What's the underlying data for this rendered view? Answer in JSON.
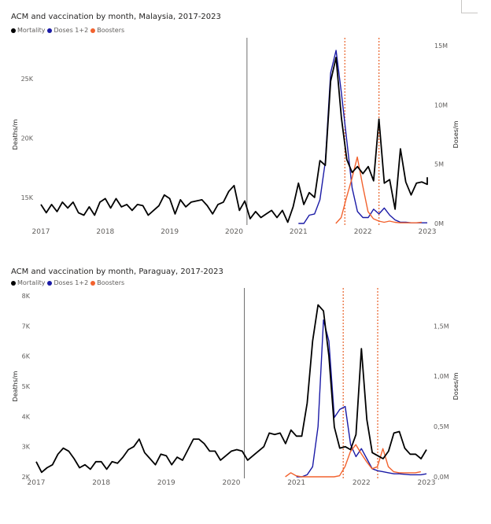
{
  "colors": {
    "mortality": "#000000",
    "doses": "#1a1aa6",
    "boosters": "#f2622e",
    "axis": "#605e5c",
    "vline": "#6e6e6e",
    "dashed": "#e8622a"
  },
  "legend": {
    "mortality": "Mortality",
    "doses": "Doses 1+2",
    "boosters": "Boosters"
  },
  "chart_data": [
    {
      "type": "line",
      "title": "ACM and vaccination by month, Malaysia, 2017-2023",
      "ylabel_left": "Deaths/m",
      "ylabel_right": "Doses/m",
      "x_ticks": [
        "2017",
        "2018",
        "2019",
        "2020",
        "2021",
        "2022",
        "2023"
      ],
      "y_left_ticks": [
        "15K",
        "20K",
        "25K"
      ],
      "y_left_tick_values": [
        15000,
        20000,
        25000
      ],
      "y_right_ticks": [
        "0M",
        "5M",
        "10M",
        "15M"
      ],
      "y_right_tick_values": [
        0,
        5000000,
        10000000,
        15000000
      ],
      "ylim_left": [
        12800,
        27800
      ],
      "ylim_right": [
        0,
        15000000
      ],
      "x_range": [
        2017,
        2023
      ],
      "grid": false,
      "legend_position": "top-left",
      "vertical_lines": [
        {
          "x": 2020.2,
          "style": "solid"
        },
        {
          "x": 2021.72,
          "style": "dashed"
        },
        {
          "x": 2022.25,
          "style": "dashed"
        }
      ],
      "series": [
        {
          "name": "Mortality",
          "axis": "left",
          "color": "#000000",
          "x_start": 2017,
          "step": 0.08333,
          "values": [
            14400,
            13700,
            14400,
            13800,
            14600,
            14100,
            14600,
            13700,
            13500,
            14200,
            13500,
            14600,
            14900,
            14100,
            14900,
            14200,
            14400,
            13900,
            14400,
            14300,
            13500,
            13900,
            14300,
            15200,
            14900,
            13600,
            14800,
            14200,
            14600,
            14700,
            14800,
            14300,
            13600,
            14400,
            14600,
            15500,
            16000,
            13900,
            14700,
            13200,
            13800,
            13300,
            13600,
            13900,
            13300,
            13900,
            12900,
            14200,
            16200,
            14400,
            15400,
            15000,
            18100,
            17700,
            24800,
            26800,
            21700,
            18200,
            17100,
            17600,
            17000,
            17600,
            16400,
            21600,
            16200,
            16500,
            14000,
            19100,
            16300,
            15200,
            16200,
            16300,
            16100,
            16700
          ]
        },
        {
          "name": "Doses 1+2",
          "axis": "right",
          "color": "#1a1aa6",
          "x_start": 2021.0,
          "step": 0.08333,
          "values": [
            0,
            0,
            700000,
            800000,
            2000000,
            5200000,
            12700000,
            14600000,
            11000000,
            7000000,
            3000000,
            1000000,
            500000,
            500000,
            1200000,
            800000,
            1300000,
            700000,
            300000,
            100000,
            100000,
            50000,
            50000,
            50000,
            50000
          ]
        },
        {
          "name": "Boosters",
          "axis": "right",
          "color": "#f2622e",
          "x_start": 2021.58,
          "step": 0.08333,
          "values": [
            0,
            500000,
            2200000,
            3800000,
            5600000,
            3200000,
            1000000,
            400000,
            200000,
            100000,
            200000,
            100000,
            50000,
            50000,
            50000,
            50000,
            100000
          ]
        }
      ]
    },
    {
      "type": "line",
      "title": "ACM and vaccination by month, Paraguay, 2017-2023",
      "ylabel_left": "Deaths/m",
      "ylabel_right": "Doses/m",
      "x_ticks": [
        "2017",
        "2018",
        "2019",
        "2020",
        "2021",
        "2022",
        "2023"
      ],
      "y_left_ticks": [
        "2K",
        "3K",
        "4K",
        "5K",
        "6K",
        "7K",
        "8K"
      ],
      "y_left_tick_values": [
        2000,
        3000,
        4000,
        5000,
        6000,
        7000,
        8000
      ],
      "y_right_ticks": [
        "0,0M",
        "0,5M",
        "1,0M",
        "1,5M"
      ],
      "y_right_tick_values": [
        0,
        500000,
        1000000,
        1500000
      ],
      "ylim_left": [
        2000,
        8000
      ],
      "ylim_right": [
        0,
        1800000
      ],
      "x_range": [
        2017,
        2023
      ],
      "grid": false,
      "legend_position": "top-left",
      "vertical_lines": [
        {
          "x": 2020.2,
          "style": "solid"
        },
        {
          "x": 2021.72,
          "style": "dashed"
        },
        {
          "x": 2022.25,
          "style": "dashed"
        }
      ],
      "series": [
        {
          "name": "Mortality",
          "axis": "left",
          "color": "#000000",
          "x_start": 2017,
          "step": 0.08333,
          "values": [
            2500,
            2150,
            2300,
            2400,
            2750,
            2950,
            2850,
            2600,
            2300,
            2400,
            2250,
            2500,
            2500,
            2250,
            2500,
            2450,
            2650,
            2900,
            3000,
            3250,
            2800,
            2600,
            2400,
            2750,
            2700,
            2400,
            2650,
            2550,
            2900,
            3250,
            3250,
            3100,
            2850,
            2850,
            2550,
            2700,
            2850,
            2900,
            2850,
            2550,
            2700,
            2850,
            3000,
            3450,
            3400,
            3450,
            3100,
            3550,
            3350,
            3350,
            4450,
            6500,
            7700,
            7500,
            6000,
            3650,
            2950,
            3000,
            2900,
            3400,
            6250,
            3900,
            2800,
            2700,
            2600,
            2850,
            3450,
            3500,
            2950,
            2750,
            2750,
            2600,
            2900,
            2900
          ]
        },
        {
          "name": "Doses 1+2",
          "axis": "right",
          "color": "#1a1aa6",
          "x_start": 2021.0,
          "step": 0.08333,
          "values": [
            0,
            0,
            20000,
            100000,
            500000,
            1560000,
            1350000,
            590000,
            670000,
            700000,
            320000,
            200000,
            280000,
            180000,
            80000,
            60000,
            50000,
            40000,
            30000,
            30000,
            25000,
            20000,
            20000,
            20000,
            30000
          ]
        },
        {
          "name": "Boosters",
          "axis": "right",
          "color": "#f2622e",
          "x_start": 2020.83,
          "step": 0.08333,
          "values": [
            0,
            40000,
            10000,
            0,
            0,
            0,
            0,
            0,
            0,
            0,
            10000,
            100000,
            250000,
            320000,
            230000,
            150000,
            80000,
            100000,
            280000,
            100000,
            50000,
            40000,
            40000,
            40000,
            40000,
            50000
          ]
        }
      ]
    }
  ]
}
